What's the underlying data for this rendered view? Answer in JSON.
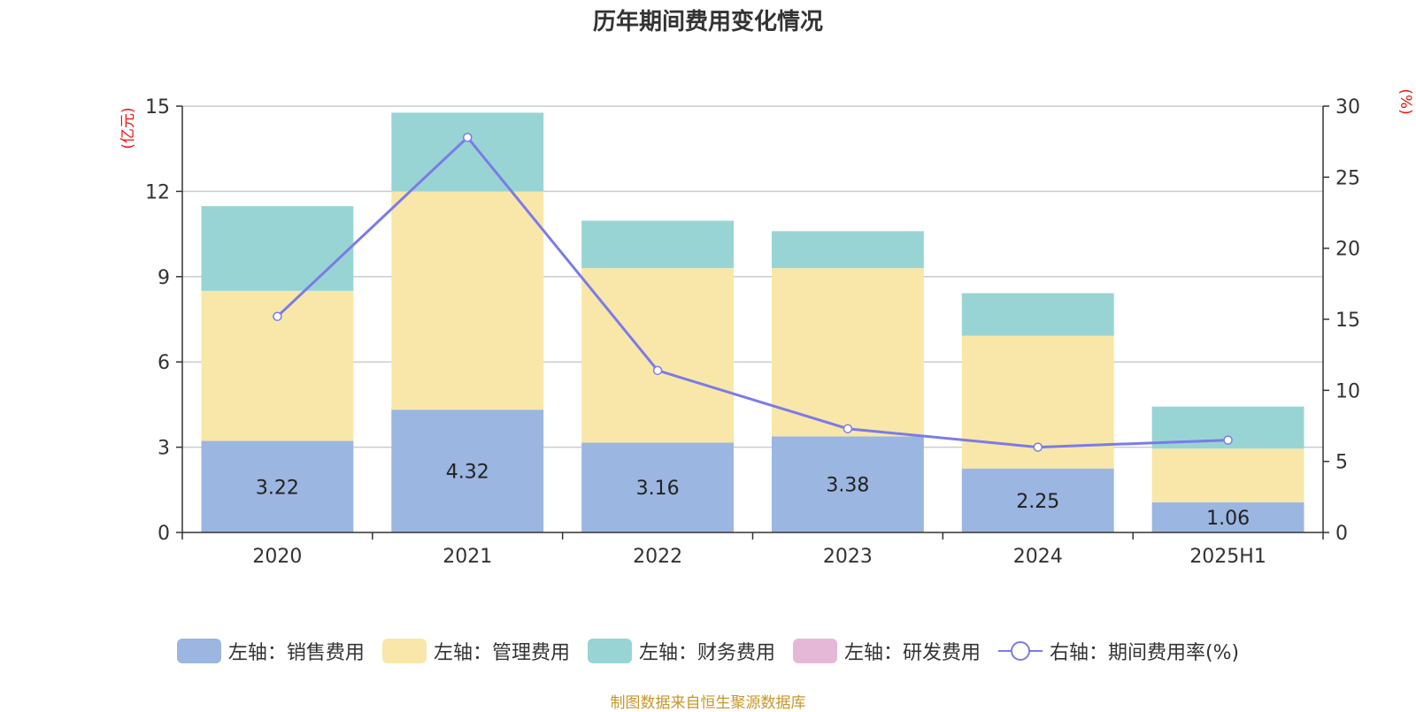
{
  "chart_data": {
    "type": "bar",
    "title": "历年期间费用变化情况",
    "categories": [
      "2020",
      "2021",
      "2022",
      "2023",
      "2024",
      "2025H1"
    ],
    "series": [
      {
        "name": "左轴：销售费用",
        "axis": "left",
        "color": "#9bb6e0",
        "values": [
          3.22,
          4.32,
          3.16,
          3.38,
          2.25,
          1.06
        ],
        "labels": [
          "3.22",
          "4.32",
          "3.16",
          "3.38",
          "2.25",
          "1.06"
        ]
      },
      {
        "name": "左轴：管理费用",
        "axis": "left",
        "color": "#f8e7a8",
        "values": [
          5.28,
          7.68,
          6.14,
          5.92,
          4.67,
          1.89
        ]
      },
      {
        "name": "左轴：财务费用",
        "axis": "left",
        "color": "#98d4d4",
        "values": [
          2.98,
          2.77,
          1.67,
          1.3,
          1.5,
          1.48
        ]
      },
      {
        "name": "左轴：研发费用",
        "axis": "left",
        "color": "#e6b8d8",
        "values": [
          0,
          0,
          0,
          0,
          0,
          0
        ]
      },
      {
        "name": "右轴：期间费用率(%)",
        "axis": "right",
        "type": "line",
        "color": "#7b7be8",
        "values": [
          15.2,
          27.8,
          11.4,
          7.3,
          6.0,
          6.5
        ]
      }
    ],
    "left_axis": {
      "label": "(亿元)",
      "ylim": [
        0,
        15
      ],
      "ticks": [
        "0",
        "3",
        "6",
        "9",
        "12",
        "15"
      ]
    },
    "right_axis": {
      "label": "(%)",
      "ylim": [
        0,
        30
      ],
      "ticks": [
        "0",
        "5",
        "10",
        "15",
        "20",
        "25",
        "30"
      ]
    },
    "grid": true,
    "legend_position": "bottom"
  },
  "source_note": "制图数据来自恒生聚源数据库"
}
